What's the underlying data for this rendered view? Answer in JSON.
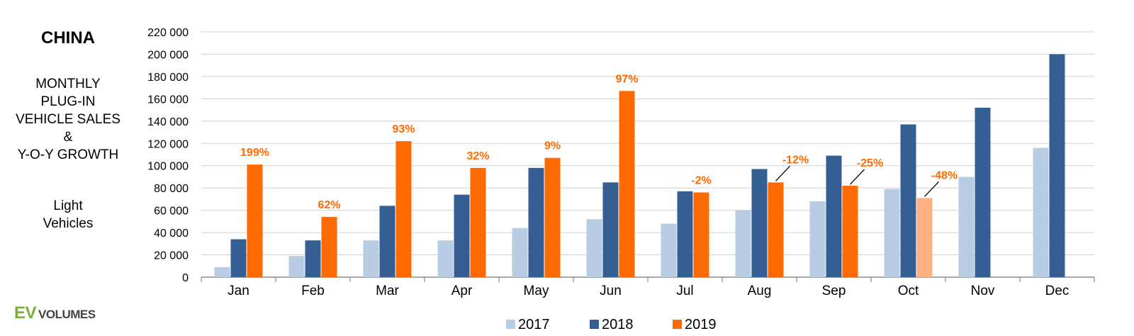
{
  "side": {
    "country": "CHINA",
    "subtitle_lines": [
      "MONTHLY",
      "PLUG-IN",
      "VEHICLE SALES",
      "&",
      "Y-O-Y GROWTH"
    ],
    "vehicle_type_lines": [
      "Light",
      "Vehicles"
    ],
    "logo_ev": "EV",
    "logo_volumes": "VOLUMES"
  },
  "chart_data": {
    "type": "bar",
    "categories": [
      "Jan",
      "Feb",
      "Mar",
      "Apr",
      "May",
      "Jun",
      "Jul",
      "Aug",
      "Sep",
      "Oct",
      "Nov",
      "Dec"
    ],
    "ylim": [
      0,
      220000
    ],
    "yticks": [
      "0",
      "20 000",
      "40 000",
      "60 000",
      "80 000",
      "100 000",
      "120 000",
      "140 000",
      "160 000",
      "180 000",
      "200 000",
      "220 000"
    ],
    "grid": true,
    "legend_position": "bottom",
    "series": [
      {
        "name": "2017",
        "color": "#b8cce4",
        "values": [
          9000,
          19000,
          33000,
          33000,
          44000,
          52000,
          48000,
          60000,
          68000,
          79000,
          90000,
          116000
        ]
      },
      {
        "name": "2018",
        "color": "#355f93",
        "values": [
          34000,
          33000,
          64000,
          74000,
          98000,
          85000,
          77000,
          97000,
          109000,
          137000,
          152000,
          200000
        ]
      },
      {
        "name": "2019",
        "color": "#ff6a00",
        "values": [
          101000,
          54000,
          122000,
          98000,
          107000,
          167000,
          76000,
          85000,
          82000,
          71000,
          null,
          null
        ],
        "highlight_color": "#fcb083",
        "highlight_index": 9
      }
    ],
    "growth_labels": [
      "199%",
      "62%",
      "93%",
      "32%",
      "9%",
      "97%",
      "-2%",
      "-12%",
      "-25%",
      "-48%",
      null,
      null
    ],
    "growth_color": "#ff6a00"
  }
}
